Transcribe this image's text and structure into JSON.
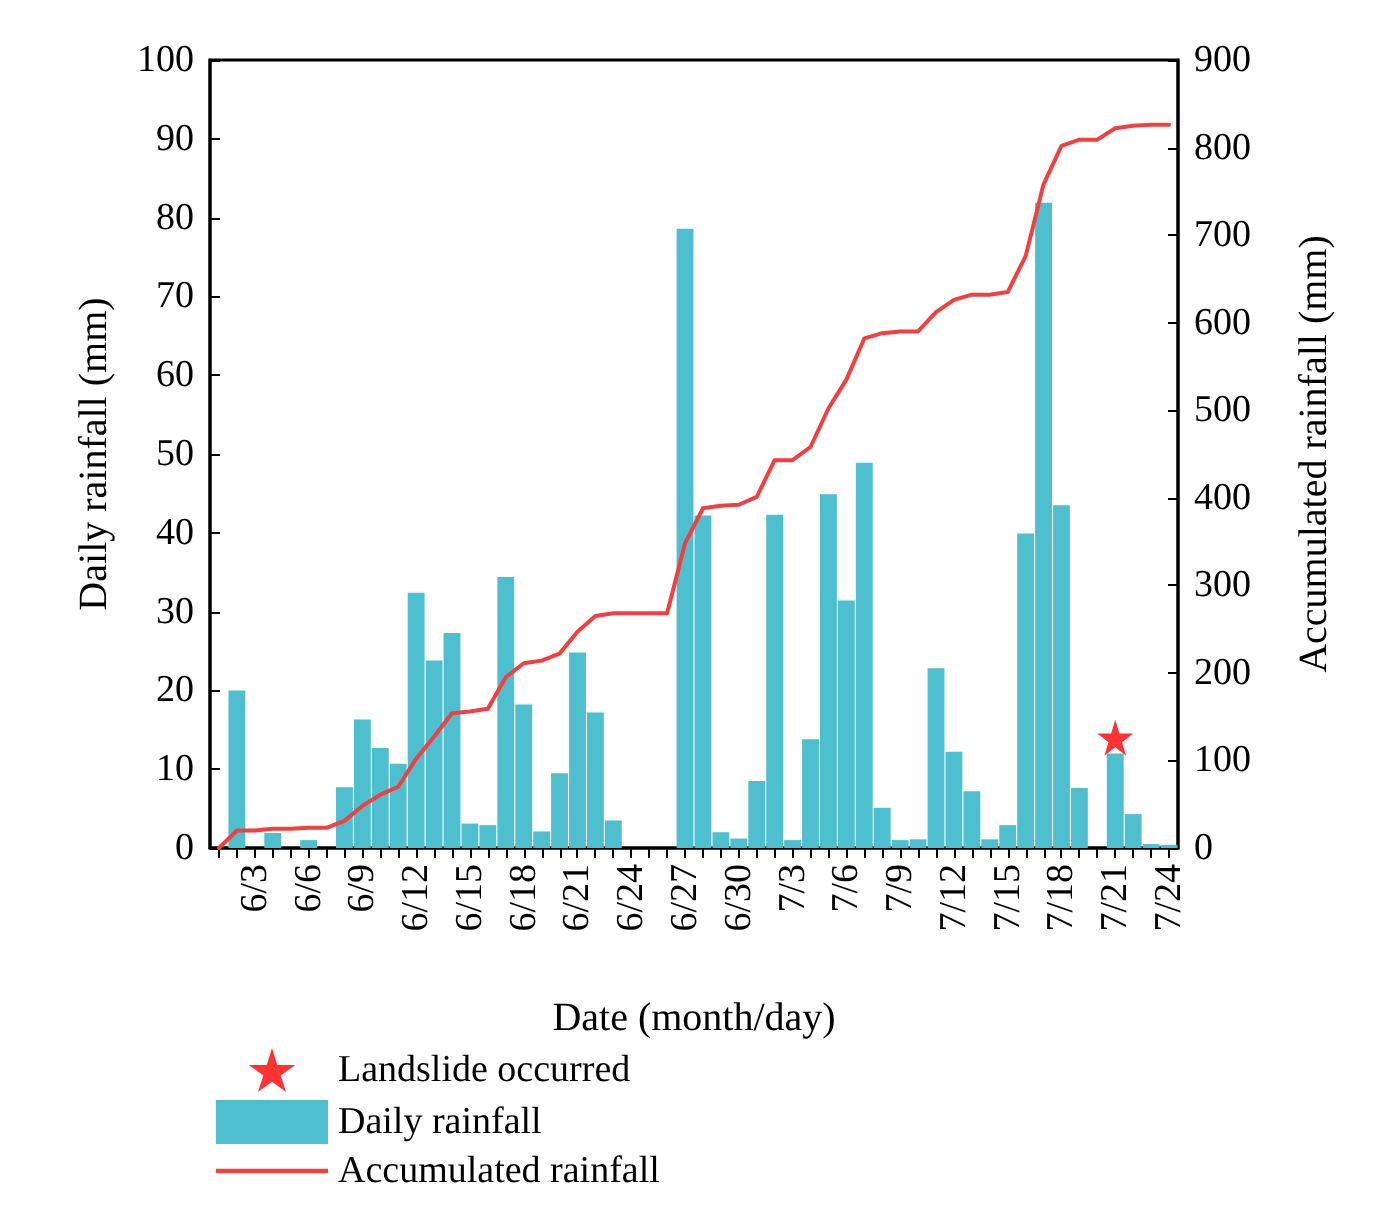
{
  "chart_data": {
    "type": "bar",
    "xlabel": "Date (month/day)",
    "ylabel": "Daily rainfall (mm)",
    "y2label": "Accumulated rainfall (mm)",
    "categories": [
      null,
      null,
      "6/3",
      null,
      null,
      "6/6",
      null,
      null,
      "6/9",
      null,
      null,
      "6/12",
      null,
      null,
      "6/15",
      null,
      null,
      "6/18",
      null,
      null,
      "6/21",
      null,
      null,
      "6/24",
      null,
      null,
      "6/27",
      null,
      null,
      "6/30",
      null,
      null,
      "7/3",
      null,
      null,
      "7/6",
      null,
      null,
      "7/9",
      null,
      null,
      "7/12",
      null,
      null,
      "7/15",
      null,
      null,
      "7/18",
      null,
      null,
      "7/21",
      null,
      null,
      "7/24"
    ],
    "ylim": [
      0,
      100
    ],
    "yticks": [
      0,
      10,
      20,
      30,
      40,
      50,
      60,
      70,
      80,
      90,
      100
    ],
    "y2lim": [
      0,
      900
    ],
    "y2ticks": [
      0,
      100,
      200,
      300,
      400,
      500,
      600,
      700,
      800,
      900
    ],
    "legend": "bottom",
    "grid": false,
    "series": [
      {
        "name": "Landslide occurred",
        "type": "scatter",
        "marker": "star",
        "color": "#ff0000",
        "x": [
          "7/21"
        ],
        "values": [
          14
        ]
      },
      {
        "name": "Daily rainfall",
        "color": "#4ebfce",
        "values": [
          0,
          20.0,
          0,
          1.9,
          0,
          1.0,
          0,
          7.7,
          16.3,
          12.7,
          10.7,
          32.4,
          23.8,
          27.3,
          3.1,
          2.9,
          34.4,
          18.2,
          2.1,
          9.5,
          24.8,
          17.2,
          3.5,
          0,
          0,
          0,
          78.6,
          42.2,
          2.0,
          1.2,
          8.5,
          42.3,
          1.0,
          13.8,
          44.9,
          31.4,
          48.9,
          5.1,
          1.0,
          1.1,
          22.8,
          12.2,
          7.2,
          1.1,
          2.9,
          39.9,
          81.9,
          43.5,
          7.6,
          0,
          12.0,
          4.3,
          0.5,
          0.4
        ]
      },
      {
        "name": "Accumulated rainfall",
        "type": "line",
        "axis": "y2",
        "marker": "none",
        "color": "#f04040",
        "values": [
          0,
          20,
          20,
          22,
          22,
          23,
          23,
          31,
          48,
          61,
          70,
          102,
          127,
          154,
          156,
          159,
          195,
          211,
          214,
          222,
          247,
          265,
          268,
          268,
          268,
          268,
          348,
          388,
          391,
          392,
          401,
          443,
          443,
          458,
          502,
          535,
          582,
          588,
          590,
          590,
          612,
          626,
          632,
          632,
          635,
          676,
          758,
          802,
          809,
          809,
          822,
          825,
          826,
          826
        ]
      }
    ]
  }
}
